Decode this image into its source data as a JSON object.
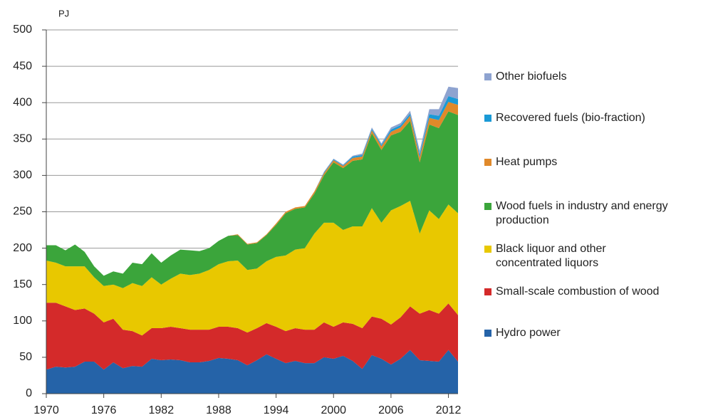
{
  "chart_data": {
    "type": "stacked_area",
    "y_label": "PJ",
    "x": [
      1970,
      1971,
      1972,
      1973,
      1974,
      1975,
      1976,
      1977,
      1978,
      1979,
      1980,
      1981,
      1982,
      1983,
      1984,
      1985,
      1986,
      1987,
      1988,
      1989,
      1990,
      1991,
      1992,
      1993,
      1994,
      1995,
      1996,
      1997,
      1998,
      1999,
      2000,
      2001,
      2002,
      2003,
      2004,
      2005,
      2006,
      2007,
      2008,
      2009,
      2010,
      2011,
      2012,
      2013
    ],
    "xlim": [
      1970,
      2013
    ],
    "xticks": [
      1970,
      1976,
      1982,
      1988,
      1994,
      2000,
      2006,
      2012
    ],
    "ylim": [
      0,
      500
    ],
    "yticks": [
      0,
      50,
      100,
      150,
      200,
      250,
      300,
      350,
      400,
      450,
      500
    ],
    "grid": true,
    "legend": "right",
    "series": [
      {
        "name": "Hydro power",
        "color": "#2563a8",
        "values": [
          33,
          37,
          36,
          37,
          44,
          44,
          33,
          43,
          35,
          38,
          37,
          48,
          46,
          47,
          46,
          43,
          43,
          45,
          49,
          48,
          46,
          39,
          46,
          54,
          48,
          42,
          45,
          42,
          42,
          50,
          48,
          52,
          45,
          34,
          53,
          48,
          40,
          48,
          60,
          46,
          45,
          44,
          60,
          44
        ]
      },
      {
        "name": "Small-scale combustion of wood",
        "color": "#d42a2a",
        "values": [
          92,
          88,
          84,
          78,
          73,
          66,
          65,
          60,
          53,
          48,
          43,
          42,
          44,
          45,
          44,
          45,
          45,
          43,
          43,
          44,
          44,
          45,
          44,
          43,
          44,
          44,
          45,
          46,
          46,
          48,
          44,
          46,
          51,
          56,
          53,
          55,
          55,
          57,
          60,
          64,
          70,
          66,
          64,
          64
        ]
      },
      {
        "name": "Black liquor and other concentrated liquors",
        "color": "#e8c800",
        "values": [
          58,
          55,
          55,
          60,
          58,
          50,
          50,
          47,
          57,
          66,
          68,
          70,
          60,
          66,
          75,
          75,
          77,
          82,
          86,
          90,
          93,
          86,
          82,
          85,
          96,
          104,
          108,
          112,
          132,
          137,
          143,
          127,
          134,
          140,
          149,
          132,
          157,
          153,
          145,
          110,
          137,
          130,
          136,
          140
        ]
      },
      {
        "name": "Wood fuels in industry and energy production",
        "color": "#3ba53b",
        "values": [
          21,
          24,
          22,
          30,
          20,
          15,
          14,
          18,
          20,
          28,
          30,
          33,
          30,
          32,
          33,
          34,
          31,
          30,
          32,
          35,
          35,
          35,
          35,
          36,
          44,
          58,
          56,
          56,
          55,
          65,
          83,
          85,
          90,
          92,
          103,
          100,
          103,
          102,
          110,
          98,
          118,
          125,
          128,
          135
        ]
      },
      {
        "name": "Heat pumps",
        "color": "#e0892a",
        "values": [
          0,
          0,
          0,
          0,
          0,
          0,
          0,
          0,
          0,
          0,
          0,
          0,
          0,
          0,
          0,
          0,
          0,
          0,
          0,
          0,
          1,
          1,
          1,
          1,
          2,
          2,
          2,
          2,
          3,
          3,
          3,
          3,
          4,
          4,
          4,
          5,
          5,
          6,
          7,
          7,
          9,
          11,
          13,
          14
        ]
      },
      {
        "name": "Recovered fuels (bio-fraction)",
        "color": "#1a9ad6",
        "values": [
          0,
          0,
          0,
          0,
          0,
          0,
          0,
          0,
          0,
          0,
          0,
          0,
          0,
          0,
          0,
          0,
          0,
          0,
          0,
          0,
          0,
          0,
          0,
          0,
          0,
          0,
          0,
          0,
          0,
          1,
          1,
          1,
          2,
          2,
          2,
          2,
          3,
          3,
          3,
          4,
          5,
          6,
          8,
          8
        ]
      },
      {
        "name": "Other biofuels",
        "color": "#8ea3d0",
        "values": [
          0,
          0,
          0,
          0,
          0,
          0,
          0,
          0,
          0,
          0,
          0,
          0,
          0,
          0,
          0,
          0,
          0,
          0,
          0,
          0,
          0,
          0,
          0,
          0,
          0,
          0,
          0,
          0,
          0,
          1,
          1,
          1,
          1,
          2,
          2,
          2,
          3,
          3,
          4,
          5,
          7,
          9,
          13,
          15
        ]
      }
    ]
  }
}
